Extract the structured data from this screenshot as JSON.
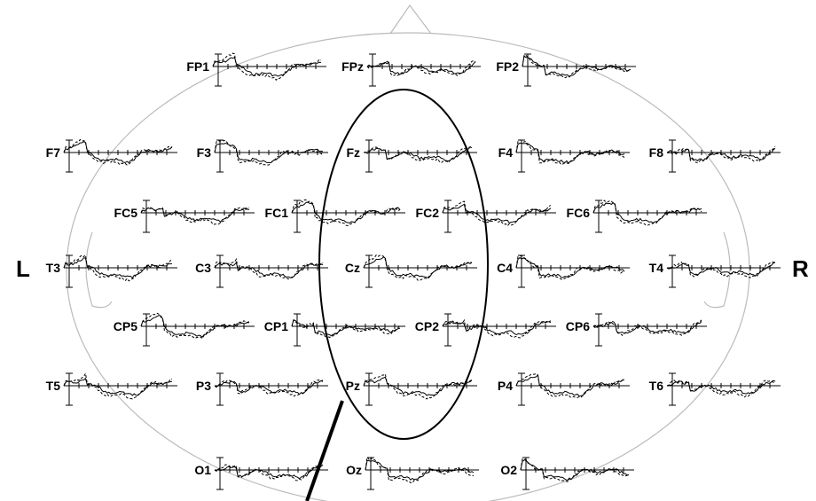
{
  "side_labels": {
    "left": "L",
    "right": "R"
  },
  "electrodes": [
    "FP1",
    "FPz",
    "FP2",
    "F7",
    "F3",
    "Fz",
    "F4",
    "F8",
    "FC5",
    "FC1",
    "FC2",
    "FC6",
    "T3",
    "C3",
    "Cz",
    "C4",
    "T4",
    "CP5",
    "CP1",
    "CP2",
    "CP6",
    "T5",
    "P3",
    "Pz",
    "P4",
    "T6",
    "O1",
    "Oz",
    "O2"
  ]
}
